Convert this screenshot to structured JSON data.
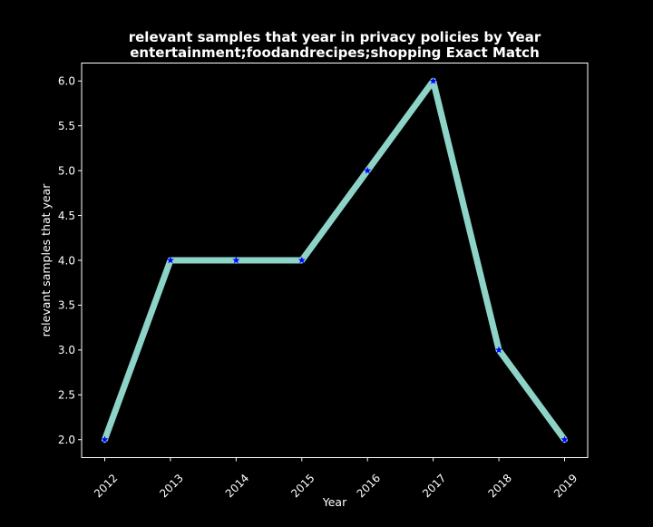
{
  "chart_data": {
    "type": "line",
    "title": "relevant samples that year in privacy policies by Year",
    "subtitle": "entertainment;foodandrecipes;shopping Exact Match",
    "xlabel": "Year",
    "ylabel": "relevant samples that year",
    "categories": [
      "2012",
      "2013",
      "2014",
      "2015",
      "2016",
      "2017",
      "2018",
      "2019"
    ],
    "values": [
      2,
      4,
      4,
      4,
      5,
      6,
      3,
      2
    ],
    "yticks": [
      "2.0",
      "2.5",
      "3.0",
      "3.5",
      "4.0",
      "4.5",
      "5.0",
      "5.5",
      "6.0"
    ],
    "ylim": [
      1.8,
      6.2
    ],
    "grid": false,
    "colors": {
      "background": "#000000",
      "line": "#8dd3c7",
      "marker": "#0000ff",
      "axes": "#ffffff",
      "text": "#ffffff"
    },
    "marker": "star"
  }
}
